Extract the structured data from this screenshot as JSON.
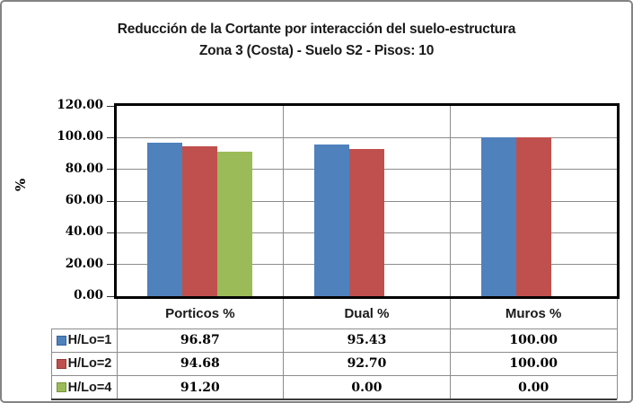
{
  "chart_data": {
    "type": "bar",
    "title": "Reducción de la Cortante por interacción del suelo-estructura",
    "subtitle": "Zona 3 (Costa) - Suelo S2 - Pisos: 10",
    "ylabel": "%",
    "ylim": [
      0,
      120
    ],
    "ytick_step": 20,
    "ytick_labels": [
      "0.00",
      "20.00",
      "40.00",
      "60.00",
      "80.00",
      "100.00",
      "120.00"
    ],
    "categories": [
      "Porticos %",
      "Dual %",
      "Muros %"
    ],
    "series": [
      {
        "name": "H/Lo=1",
        "color": "#4F81BD",
        "swatch_border": "#38619C",
        "values": [
          96.87,
          95.43,
          100.0
        ],
        "display": [
          "96.87",
          "95.43",
          "100.00"
        ]
      },
      {
        "name": "H/Lo=2",
        "color": "#C0504D",
        "swatch_border": "#953735",
        "values": [
          94.68,
          92.7,
          100.0
        ],
        "display": [
          "94.68",
          "92.70",
          "100.00"
        ]
      },
      {
        "name": "H/Lo=4",
        "color": "#9BBB59",
        "swatch_border": "#76933C",
        "values": [
          91.2,
          0.0,
          0.0
        ],
        "display": [
          "91.20",
          "0.00",
          "0.00"
        ]
      }
    ],
    "grid": true,
    "legend_position": "data-table-left",
    "data_table_shown": true
  },
  "colors": {
    "gridline": "#8C8C8C",
    "plot_border": "#000000",
    "table_line": "#8C8C8C",
    "table_bottom_line": "#3A3A3A",
    "frame_border": "#848484",
    "text": "#1A1A1A"
  }
}
